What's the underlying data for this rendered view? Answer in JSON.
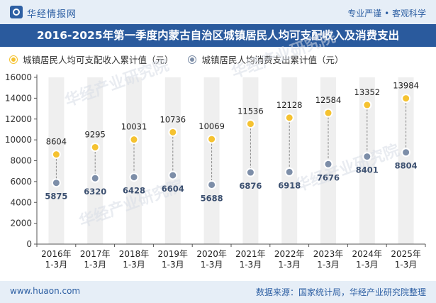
{
  "header": {
    "brand": "华经情报网",
    "slogan": "专业严谨 • 客观科学",
    "title": "2016-2025年第一季度内蒙古自治区城镇居民人均可支配收入及消费支出"
  },
  "footer": {
    "site": "www.huaon.com",
    "source": "数据来源：国家统计局，华经产业研究院整理"
  },
  "colors": {
    "header_bg": "#2a5a9d",
    "band_bg": "#e6eef7",
    "income": "#f5c230",
    "expense": "#7d8ea8",
    "column_bg": "#efefef"
  },
  "chart_data": {
    "type": "scatter",
    "title": "2016-2025年第一季度内蒙古自治区城镇居民人均可支配收入及消费支出",
    "categories": [
      "2016年\n1-3月",
      "2017年\n1-3月",
      "2018年\n1-3月",
      "2019年\n1-3月",
      "2020年\n1-3月",
      "2021年\n1-3月",
      "2022年\n1-3月",
      "2023年\n1-3月",
      "2024年\n1-3月",
      "2025年\n1-3月"
    ],
    "series": [
      {
        "name": "城镇居民人均可支配收入累计值（元）",
        "values": [
          8604,
          9295,
          10031,
          10736,
          10069,
          11536,
          12128,
          12584,
          13352,
          13984
        ]
      },
      {
        "name": "城镇居民人均消费支出累计值（元）",
        "values": [
          5875,
          6320,
          6428,
          6604,
          5688,
          6876,
          6918,
          7676,
          8401,
          8804
        ]
      }
    ],
    "ylim": [
      0,
      16000
    ],
    "yticks": [
      0,
      2000,
      4000,
      6000,
      8000,
      10000,
      12000,
      14000,
      16000
    ],
    "legend": "top-left",
    "grid": false
  },
  "watermarks": [
    "华经产业研究院",
    "华经产业研究院",
    "华经产业研究院",
    "华经产业研究院"
  ]
}
